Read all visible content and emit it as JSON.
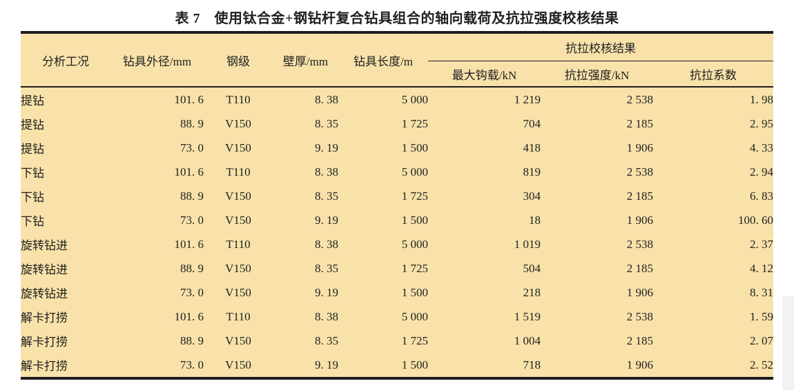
{
  "caption": "表 7　使用钛合金+钢钻杆复合钻具组合的轴向载荷及抗拉强度校核结果",
  "colors": {
    "table_background": "#f8e2aa",
    "rule": "#1c1c1c",
    "text": "#1f1f1f",
    "scan_artifact": "#f2f2f2",
    "page_background": "#ffffff"
  },
  "table": {
    "columns": [
      "分析工况",
      "钻具外径/mm",
      "钢级",
      "壁厚/mm",
      "钻具长度/m"
    ],
    "span_header": "抗拉校核结果",
    "span_columns": [
      "最大钩载/kN",
      "抗拉强度/kN",
      "抗拉系数"
    ],
    "rows": [
      [
        "提钻",
        "101. 6",
        "T110",
        "8. 38",
        "5 000",
        "1 219",
        "2 538",
        "1. 98"
      ],
      [
        "提钻",
        "88. 9",
        "V150",
        "8. 35",
        "1 725",
        "704",
        "2 185",
        "2. 95"
      ],
      [
        "提钻",
        "73. 0",
        "V150",
        "9. 19",
        "1 500",
        "418",
        "1 906",
        "4. 33"
      ],
      [
        "下钻",
        "101. 6",
        "T110",
        "8. 38",
        "5 000",
        "819",
        "2 538",
        "2. 94"
      ],
      [
        "下钻",
        "88. 9",
        "V150",
        "8. 35",
        "1 725",
        "304",
        "2 185",
        "6. 83"
      ],
      [
        "下钻",
        "73. 0",
        "V150",
        "9. 19",
        "1 500",
        "18",
        "1 906",
        "100. 60"
      ],
      [
        "旋转钻进",
        "101. 6",
        "T110",
        "8. 38",
        "5 000",
        "1 019",
        "2 538",
        "2. 37"
      ],
      [
        "旋转钻进",
        "88. 9",
        "V150",
        "8. 35",
        "1 725",
        "504",
        "2 185",
        "4. 12"
      ],
      [
        "旋转钻进",
        "73. 0",
        "V150",
        "9. 19",
        "1 500",
        "218",
        "1 906",
        "8. 31"
      ],
      [
        "解卡打捞",
        "101. 6",
        "T110",
        "8. 38",
        "5 000",
        "1 519",
        "2 538",
        "1. 59"
      ],
      [
        "解卡打捞",
        "88. 9",
        "V150",
        "8. 35",
        "1 725",
        "1 004",
        "2 185",
        "2. 07"
      ],
      [
        "解卡打捞",
        "73. 0",
        "V150",
        "9. 19",
        "1 500",
        "718",
        "1 906",
        "2. 52"
      ]
    ],
    "cell_names": [
      "cell-analysis-condition",
      "cell-outer-diameter",
      "cell-steel-grade",
      "cell-wall-thickness",
      "cell-drill-length",
      "cell-max-hook-load",
      "cell-tensile-strength",
      "cell-tensile-factor"
    ]
  }
}
